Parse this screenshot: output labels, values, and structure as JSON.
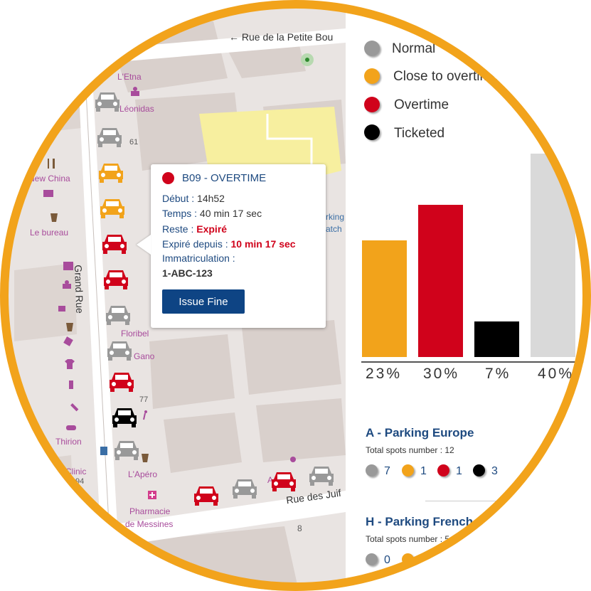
{
  "map": {
    "streets": {
      "petite": "← Rue de la Petite Bou",
      "grand": "Grand Rue",
      "juifs": "Rue des Juif"
    },
    "labels": {
      "etna": "L'Etna",
      "leonidas": "Léonidas",
      "n61": "61",
      "new_china": "New China",
      "bureau": "Le bureau",
      "floribel": "Floribel",
      "gano": "Gano",
      "n77": "77",
      "thirion": "Thirion",
      "clinic": "Clinic",
      "n94": "94",
      "apero": "L'Apéro",
      "pharmacie": "Pharmacie",
      "messines": "de Messines",
      "n8": "8",
      "parking": "rking",
      "watch": "atch",
      "adele": "A"
    }
  },
  "popup": {
    "title": "B09 - OVERTIME",
    "debut_label": "Début : ",
    "debut_value": "14h52",
    "temps_label": "Temps : ",
    "temps_value": "40 min 17 sec",
    "reste_label": "Reste : ",
    "reste_value": "Expiré",
    "expire_label": "Expiré depuis : ",
    "expire_value": "10 min 17 sec",
    "immat_label": "Immatriculation :",
    "immat_value": "1-ABC-123",
    "button": "Issue Fine"
  },
  "legend": [
    {
      "label": "Normal",
      "color": "#999999"
    },
    {
      "label": "Close to overtime",
      "color": "#f2a31b"
    },
    {
      "label": "Overtime",
      "color": "#d0021b"
    },
    {
      "label": "Ticketed",
      "color": "#000000"
    }
  ],
  "chart_data": {
    "type": "bar",
    "categories": [
      "Close to overtime",
      "Overtime",
      "Ticketed",
      "Normal"
    ],
    "values": [
      23,
      30,
      7,
      40
    ],
    "labels": [
      "23%",
      "30%",
      "7%",
      "40%"
    ],
    "colors": [
      "#f2a31b",
      "#d0021b",
      "#000000",
      "#d9d9d9"
    ],
    "ylim": [
      0,
      40
    ]
  },
  "parkings": [
    {
      "title": "A - Parking Europe",
      "total_label": "Total spots number : 12",
      "counts": [
        "7",
        "1",
        "1",
        "3"
      ]
    },
    {
      "title": "H - Parking French",
      "total_label": "Total spots number : 5",
      "counts": [
        "0"
      ]
    }
  ],
  "colors": {
    "accent": "#f2a31b",
    "overtime": "#d0021b",
    "link": "#1e4a80",
    "button": "#0e4484"
  }
}
